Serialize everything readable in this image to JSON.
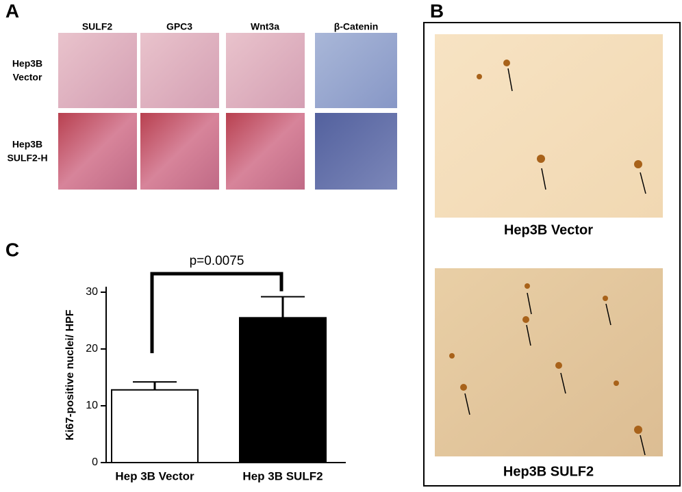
{
  "panel_labels": [
    "A",
    "B",
    "C"
  ],
  "panel_a": {
    "columns": [
      "SULF2",
      "GPC3",
      "Wnt3a",
      "β-Catenin"
    ],
    "rows": [
      [
        "Hep3B",
        "Vector"
      ],
      [
        "Hep3B",
        "SULF2-H"
      ]
    ]
  },
  "panel_b": {
    "captions": [
      "Hep3B Vector",
      "Hep3B SULF2"
    ]
  },
  "chart_data": {
    "type": "bar",
    "ylabel": "Ki67-positive nuclei/ HPF",
    "categories": [
      "Hep 3B Vector",
      "Hep 3B SULF2"
    ],
    "values": [
      12.8,
      25.5
    ],
    "errors": [
      1.4,
      3.7
    ],
    "colors": [
      "#ffffff",
      "#000000"
    ],
    "ylim": [
      0,
      30
    ],
    "yticks": [
      0,
      10,
      20,
      30
    ],
    "annotation": "p=0.0075"
  }
}
